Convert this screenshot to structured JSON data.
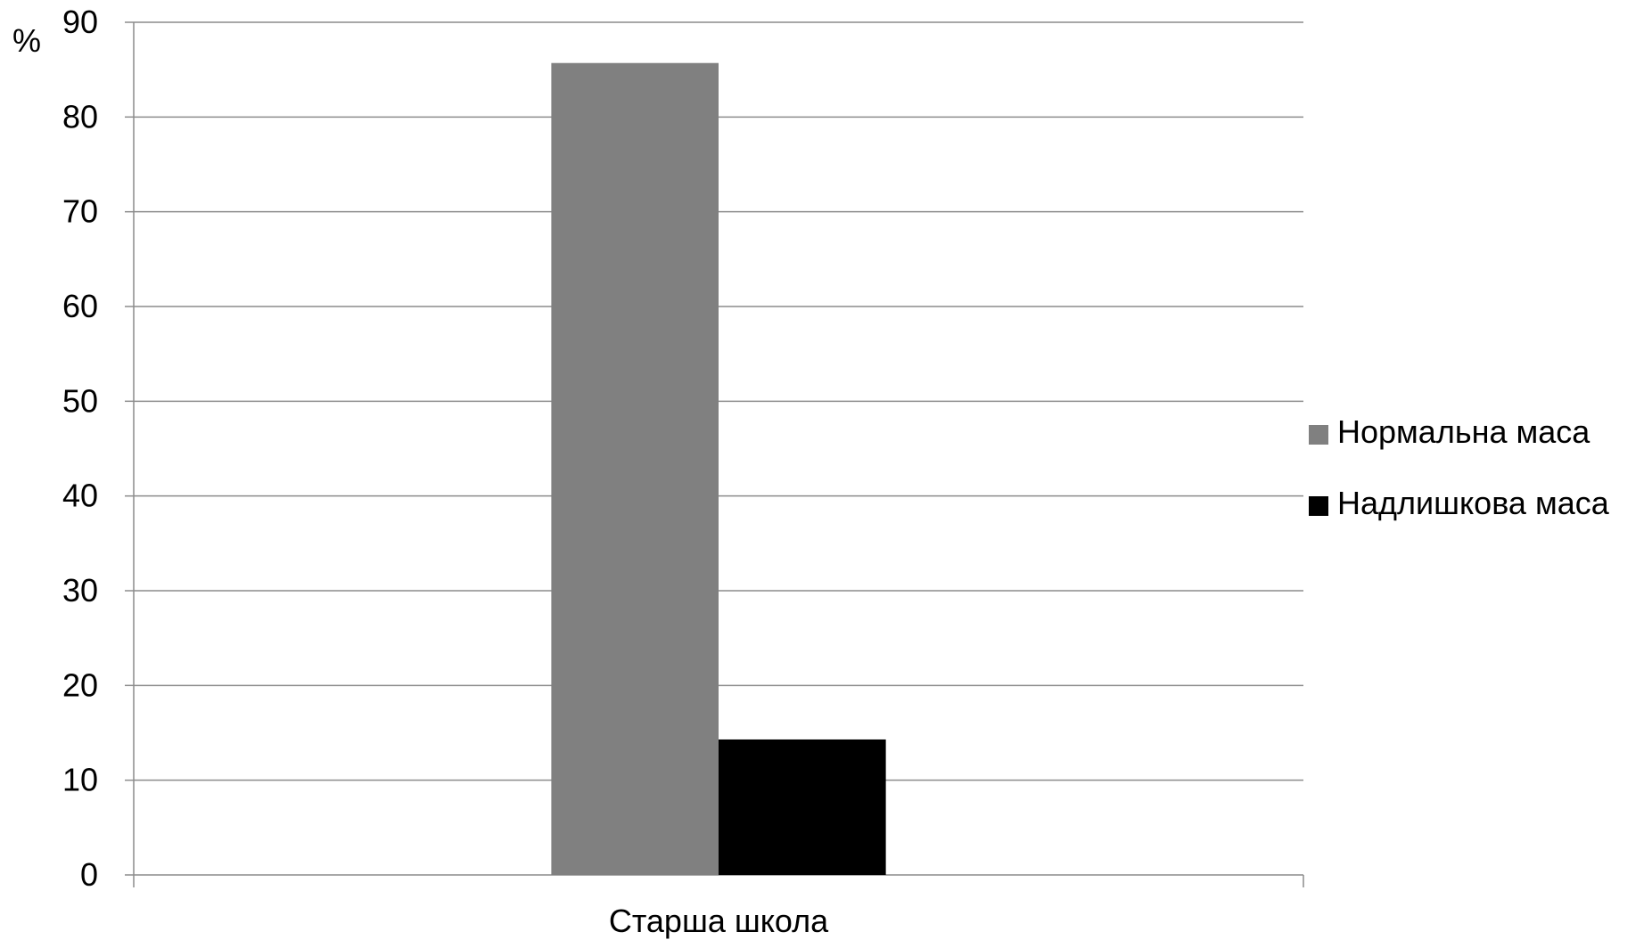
{
  "chart_data": {
    "type": "bar",
    "categories": [
      "Старша школа"
    ],
    "series": [
      {
        "name": "Нормальна маса",
        "color": "#808080",
        "values": [
          85.7
        ]
      },
      {
        "name": "Надлишкова маса",
        "color": "#000000",
        "values": [
          14.3
        ]
      }
    ],
    "ylabel": "%",
    "xlabel": "",
    "ylim": [
      0,
      90
    ],
    "ytick_step": 10,
    "grid": true,
    "legend_position": "right"
  }
}
